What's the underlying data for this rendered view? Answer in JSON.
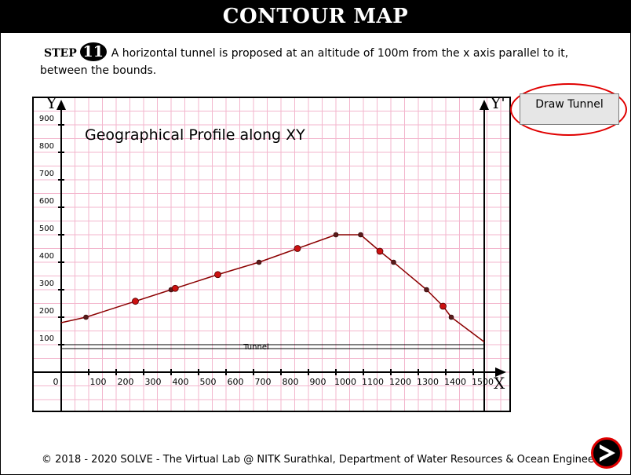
{
  "header": {
    "title": "CONTOUR MAP"
  },
  "step": {
    "label": "STEP",
    "number": "11",
    "text": "A horizontal tunnel is proposed at an altitude of 100m from the x axis parallel to it, between the bounds."
  },
  "button": {
    "draw_tunnel": "Draw Tunnel"
  },
  "footer": {
    "text": "© 2018 - 2020 SOLVE - The Virtual Lab @ NITK Surathkal, Department of Water Resources & Ocean Engineering"
  },
  "chart_data": {
    "type": "line",
    "title": "Geographical Profile along XY",
    "xlabel": "X",
    "ylabel": "Y",
    "right_axis_label": "Y'",
    "xlim": [
      0,
      1500
    ],
    "ylim": [
      0,
      900
    ],
    "x_ticks": [
      0,
      100,
      200,
      300,
      400,
      500,
      600,
      700,
      800,
      900,
      1000,
      1100,
      1200,
      1300,
      1400,
      1500
    ],
    "y_ticks": [
      100,
      200,
      300,
      400,
      500,
      600,
      700,
      800,
      900
    ],
    "grid": true,
    "tunnel": {
      "label": "Tunnel",
      "altitude": 100,
      "x_range": [
        0,
        1540
      ]
    },
    "series": [
      {
        "values": [
          [
            0,
            180
          ],
          [
            90,
            200
          ],
          [
            270,
            258
          ],
          [
            400,
            300
          ],
          [
            415,
            305
          ],
          [
            570,
            355
          ],
          [
            720,
            400
          ],
          [
            860,
            450
          ],
          [
            1000,
            500
          ],
          [
            1090,
            500
          ],
          [
            1160,
            440
          ],
          [
            1210,
            400
          ],
          [
            1330,
            300
          ],
          [
            1390,
            240
          ],
          [
            1420,
            200
          ],
          [
            1540,
            110
          ]
        ]
      }
    ],
    "markers": {
      "small": [
        [
          90,
          200
        ],
        [
          400,
          300
        ],
        [
          720,
          400
        ],
        [
          1000,
          500
        ],
        [
          1090,
          500
        ],
        [
          1210,
          400
        ],
        [
          1330,
          300
        ],
        [
          1420,
          200
        ]
      ],
      "large": [
        [
          270,
          258
        ],
        [
          415,
          305
        ],
        [
          570,
          355
        ],
        [
          860,
          450
        ],
        [
          1160,
          440
        ],
        [
          1390,
          240
        ]
      ]
    },
    "colors": {
      "line": "#8b0000",
      "marker_large": "#cc1111",
      "marker_small": "#5a1a1a",
      "grid": "#f3b6cd"
    }
  }
}
